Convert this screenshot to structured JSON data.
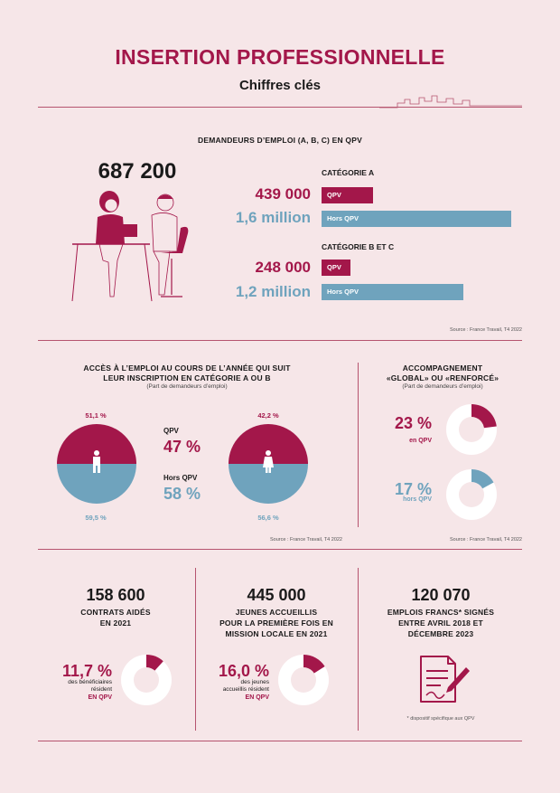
{
  "header": {
    "title": "INSERTION PROFESSIONNELLE",
    "subtitle": "Chiffres clés"
  },
  "demandeurs": {
    "heading": "DEMANDEURS D’EMPLOI (A, B, C) EN QPV",
    "total": "687 200",
    "cat_a": {
      "label": "CATÉGORIE A",
      "qpv_value": "439 000",
      "qpv_label": "QPV",
      "hors_value": "1,6 million",
      "hors_label": "Hors QPV"
    },
    "cat_bc": {
      "label": "CATÉGORIE B ET C",
      "qpv_value": "248 000",
      "qpv_label": "QPV",
      "hors_value": "1,2 million",
      "hors_label": "Hors QPV"
    },
    "source": "Source : France Travail, T4 2022"
  },
  "acces": {
    "heading_line1": "ACCÈS À L’EMPLOI AU COURS DE L’ANNÉE QUI SUIT",
    "heading_line2": "LEUR INSCRIPTION EN CATÉGORIE A OU B",
    "note": "(Part de demandeurs d’emploi)",
    "men": {
      "top": "51,1 %",
      "bottom": "59,5 %"
    },
    "women": {
      "top": "42,2 %",
      "bottom": "56,6 %"
    },
    "qpv_label": "QPV",
    "qpv_value": "47 %",
    "hors_label": "Hors QPV",
    "hors_value": "58 %",
    "source": "Source : France Travail, T4 2022"
  },
  "accompagnement": {
    "heading_line1": "ACCOMPAGNEMENT",
    "heading_line2": "«GLOBAL» OU «RENFORCÉ»",
    "note": "(Part de demandeurs d’emploi)",
    "qpv": {
      "value": "23 %",
      "label": "en QPV",
      "fraction": 0.23
    },
    "hors": {
      "value": "17 %",
      "label": "hors QPV",
      "fraction": 0.17
    },
    "source": "Source : France Travail, T4 2022"
  },
  "contrats": {
    "value": "158 600",
    "line1": "CONTRATS AIDÉS",
    "line2": "EN 2021",
    "pct": "11,7 %",
    "desc1": "des bénéficiaires",
    "desc2": "résident",
    "desc3": "EN QPV",
    "fraction": 0.117
  },
  "jeunes": {
    "value": "445 000",
    "line1": "JEUNES ACCUEILLIS",
    "line2": "POUR LA PREMIÈRE FOIS EN",
    "line3": "MISSION LOCALE EN 2021",
    "pct": "16,0 %",
    "desc1": "des jeunes",
    "desc2": "accueillis résident",
    "desc3": "EN QPV",
    "fraction": 0.16
  },
  "emplois": {
    "value": "120 070",
    "line1": "EMPLOIS FRANCS* SIGNÉS",
    "line2": "ENTRE AVRIL 2018 ET",
    "line3": "DÉCEMBRE 2023",
    "footnote": "* dispositif spécifique aux QPV"
  },
  "colors": {
    "crimson": "#a3174a",
    "blue": "#6fa3bd",
    "background": "#f6e6e8"
  },
  "chart_data": {
    "type": "bar",
    "categories": [
      "CATÉGORIE A",
      "CATÉGORIE B ET C"
    ],
    "series": [
      {
        "name": "QPV",
        "values": [
          439000,
          248000
        ]
      },
      {
        "name": "Hors QPV",
        "values": [
          1600000,
          1200000
        ]
      }
    ]
  }
}
